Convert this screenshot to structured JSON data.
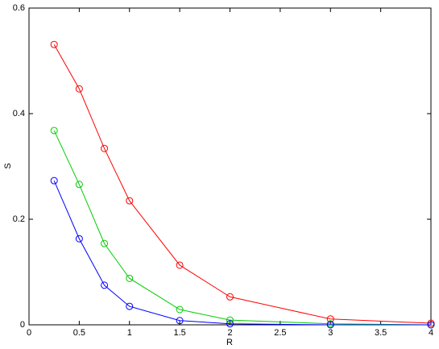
{
  "chart_data": {
    "type": "line",
    "x_label": "R",
    "y_label": "S",
    "x": [
      0.25,
      0.5,
      0.75,
      1,
      1.5,
      2,
      3,
      4
    ],
    "series": [
      {
        "color": "#ff0000",
        "values": [
          0.531,
          0.447,
          0.334,
          0.235,
          0.113,
          0.053,
          0.011,
          0.003
        ]
      },
      {
        "color": "#00cc00",
        "values": [
          0.368,
          0.266,
          0.154,
          0.088,
          0.029,
          0.009,
          0.002,
          0
        ]
      },
      {
        "color": "#0000ff",
        "values": [
          0.273,
          0.163,
          0.075,
          0.035,
          0.008,
          0.002,
          0,
          0
        ]
      }
    ],
    "xlim": [
      0,
      4
    ],
    "xticks": [
      0,
      0.5,
      1,
      1.5,
      2,
      2.5,
      3,
      3.5,
      4
    ],
    "ylim": [
      0,
      0.6
    ],
    "yticks": [
      0,
      0.2,
      0.4,
      0.6
    ],
    "marker": "circle",
    "grid": false
  }
}
